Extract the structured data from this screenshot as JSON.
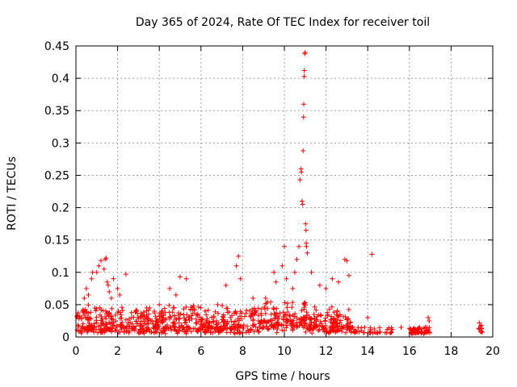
{
  "chart_data": {
    "type": "scatter",
    "title": "Day 365 of 2024, Rate Of TEC Index for receiver toil",
    "xlabel": "GPS time / hours",
    "ylabel": "ROTI / TECUs",
    "xlim": [
      0,
      20
    ],
    "ylim": [
      0,
      0.45
    ],
    "xticks": [
      0,
      2,
      4,
      6,
      8,
      10,
      12,
      14,
      16,
      18,
      20
    ],
    "yticks": [
      0,
      0.05,
      0.1,
      0.15,
      0.2,
      0.25,
      0.3,
      0.35,
      0.4,
      0.45
    ],
    "ytick_labels": [
      "0",
      "0.05",
      "0.1",
      "0.15",
      "0.2",
      "0.25",
      "0.3",
      "0.35",
      "0.4",
      "0.45"
    ],
    "grid": true,
    "marker": "+",
    "series": [
      {
        "name": "ROTI",
        "color": "#ff0000",
        "segments": [
          {
            "x_start": 0.0,
            "x_end": 13.3,
            "density": 900,
            "base": 0.02,
            "spread": 0.035
          },
          {
            "x_start": 13.3,
            "x_end": 15.2,
            "density": 40,
            "base": 0.012,
            "spread": 0.01
          },
          {
            "x_start": 16.0,
            "x_end": 17.0,
            "density": 60,
            "base": 0.012,
            "spread": 0.01
          },
          {
            "x_start": 19.3,
            "x_end": 19.5,
            "density": 8,
            "base": 0.018,
            "spread": 0.006
          }
        ],
        "points": [
          [
            0.4,
            0.06
          ],
          [
            0.5,
            0.075
          ],
          [
            0.6,
            0.065
          ],
          [
            0.75,
            0.09
          ],
          [
            0.8,
            0.1
          ],
          [
            1.0,
            0.1
          ],
          [
            1.1,
            0.11
          ],
          [
            1.2,
            0.118
          ],
          [
            1.35,
            0.105
          ],
          [
            1.4,
            0.12
          ],
          [
            1.45,
            0.122
          ],
          [
            1.5,
            0.085
          ],
          [
            1.55,
            0.08
          ],
          [
            1.6,
            0.07
          ],
          [
            1.7,
            0.06
          ],
          [
            1.8,
            0.09
          ],
          [
            2.0,
            0.075
          ],
          [
            2.1,
            0.065
          ],
          [
            2.4,
            0.097
          ],
          [
            2.9,
            0.04
          ],
          [
            3.4,
            0.045
          ],
          [
            4.0,
            0.05
          ],
          [
            4.5,
            0.075
          ],
          [
            4.8,
            0.065
          ],
          [
            5.0,
            0.093
          ],
          [
            5.3,
            0.09
          ],
          [
            5.6,
            0.045
          ],
          [
            6.2,
            0.04
          ],
          [
            6.8,
            0.05
          ],
          [
            7.2,
            0.08
          ],
          [
            7.7,
            0.11
          ],
          [
            7.8,
            0.125
          ],
          [
            7.9,
            0.09
          ],
          [
            8.5,
            0.06
          ],
          [
            9.1,
            0.06
          ],
          [
            9.5,
            0.1
          ],
          [
            9.6,
            0.085
          ],
          [
            9.9,
            0.11
          ],
          [
            10.0,
            0.14
          ],
          [
            10.1,
            0.09
          ],
          [
            10.4,
            0.075
          ],
          [
            10.5,
            0.1
          ],
          [
            10.6,
            0.12
          ],
          [
            10.7,
            0.14
          ],
          [
            10.75,
            0.243
          ],
          [
            10.8,
            0.26
          ],
          [
            10.82,
            0.255
          ],
          [
            10.85,
            0.21
          ],
          [
            10.88,
            0.205
          ],
          [
            10.9,
            0.288
          ],
          [
            10.92,
            0.34
          ],
          [
            10.93,
            0.36
          ],
          [
            10.95,
            0.403
          ],
          [
            10.96,
            0.412
          ],
          [
            10.98,
            0.438
          ],
          [
            11.0,
            0.44
          ],
          [
            11.02,
            0.175
          ],
          [
            11.04,
            0.165
          ],
          [
            11.05,
            0.145
          ],
          [
            11.06,
            0.14
          ],
          [
            11.1,
            0.13
          ],
          [
            11.3,
            0.1
          ],
          [
            11.7,
            0.08
          ],
          [
            12.0,
            0.075
          ],
          [
            12.3,
            0.09
          ],
          [
            12.6,
            0.085
          ],
          [
            12.9,
            0.12
          ],
          [
            13.0,
            0.118
          ],
          [
            13.1,
            0.095
          ],
          [
            14.2,
            0.128
          ],
          [
            14.0,
            0.03
          ],
          [
            15.6,
            0.015
          ],
          [
            16.9,
            0.03
          ],
          [
            16.95,
            0.025
          ],
          [
            19.35,
            0.022
          ],
          [
            19.45,
            0.018
          ]
        ]
      }
    ]
  }
}
